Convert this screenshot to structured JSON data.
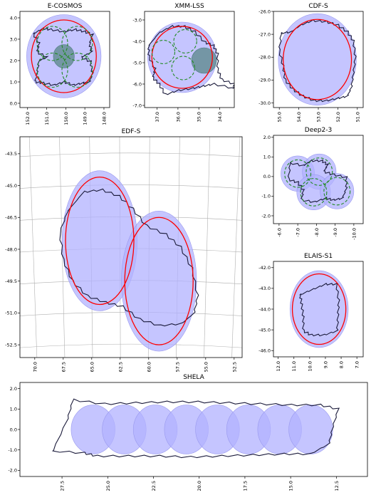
{
  "chart_data": [
    {
      "type": "scatter",
      "title": "E-COSMOS",
      "x_ticks": [
        "152.0",
        "151.0",
        "150.0",
        "149.0",
        "148.0"
      ],
      "y_ticks": [
        "4.0",
        "3.0",
        "2.0",
        "1.0",
        "0.0"
      ],
      "xlim": [
        152.4,
        147.7
      ],
      "ylim": [
        -0.2,
        4.3
      ],
      "grid": false,
      "inverted_x": true,
      "circles": [
        {
          "cx": 150.1,
          "cy": 2.2,
          "r": 1.95,
          "style": "fill"
        },
        {
          "cx": 150.1,
          "cy": 2.2,
          "r": 1.7,
          "style": "red"
        },
        {
          "cx": 150.1,
          "cy": 2.2,
          "r": 0.55,
          "style": "dark"
        },
        {
          "cx": 150.7,
          "cy": 2.8,
          "r": 0.8,
          "style": "green"
        },
        {
          "cx": 149.4,
          "cy": 2.8,
          "r": 0.8,
          "style": "green"
        },
        {
          "cx": 150.7,
          "cy": 1.55,
          "r": 0.8,
          "style": "green"
        },
        {
          "cx": 149.4,
          "cy": 1.55,
          "r": 0.8,
          "style": "green"
        }
      ],
      "outline": [
        [
          151.7,
          3.25
        ],
        [
          151.2,
          3.5
        ],
        [
          150.8,
          3.45
        ],
        [
          150.1,
          3.35
        ],
        [
          149.5,
          3.45
        ],
        [
          149.0,
          3.35
        ],
        [
          148.6,
          3.2
        ],
        [
          148.75,
          2.8
        ],
        [
          148.65,
          2.4
        ],
        [
          149.2,
          2.15
        ],
        [
          148.7,
          1.95
        ],
        [
          148.6,
          1.4
        ],
        [
          148.75,
          1.0
        ],
        [
          149.1,
          0.95
        ],
        [
          149.6,
          0.85
        ],
        [
          150.1,
          1.0
        ],
        [
          150.6,
          0.85
        ],
        [
          151.2,
          0.95
        ],
        [
          151.6,
          1.0
        ],
        [
          151.5,
          1.45
        ],
        [
          151.4,
          2.0
        ],
        [
          151.0,
          2.15
        ],
        [
          151.5,
          2.4
        ],
        [
          151.4,
          2.8
        ]
      ]
    },
    {
      "type": "scatter",
      "title": "XMM-LSS",
      "x_ticks": [
        "37.0",
        "36.0",
        "35.0",
        "34.0"
      ],
      "y_ticks": [
        "-3.0",
        "-4.0",
        "-5.0",
        "-6.0",
        "-7.0"
      ],
      "xlim": [
        37.6,
        33.3
      ],
      "ylim": [
        -7.1,
        -2.6
      ],
      "grid": false,
      "inverted_x": true,
      "circles": [
        {
          "cx": 35.8,
          "cy": -4.75,
          "r": 1.65,
          "style": "fill"
        },
        {
          "cx": 35.8,
          "cy": -4.75,
          "r": 1.45,
          "style": "red"
        },
        {
          "cx": 34.75,
          "cy": -4.9,
          "r": 0.6,
          "style": "dark"
        },
        {
          "cx": 36.7,
          "cy": -4.5,
          "r": 0.55,
          "style": "green"
        },
        {
          "cx": 35.65,
          "cy": -4.0,
          "r": 0.55,
          "style": "green"
        },
        {
          "cx": 35.75,
          "cy": -5.25,
          "r": 0.55,
          "style": "green"
        }
      ],
      "outline": [
        [
          37.4,
          -4.2
        ],
        [
          36.9,
          -3.6
        ],
        [
          36.3,
          -3.3
        ],
        [
          35.7,
          -3.3
        ],
        [
          35.2,
          -3.55
        ],
        [
          34.7,
          -4.05
        ],
        [
          34.3,
          -4.2
        ],
        [
          34.1,
          -4.6
        ],
        [
          34.1,
          -5.3
        ],
        [
          33.9,
          -5.8
        ],
        [
          33.3,
          -6.0
        ],
        [
          33.3,
          -6.2
        ],
        [
          34.3,
          -6.0
        ],
        [
          34.8,
          -6.1
        ],
        [
          35.3,
          -6.2
        ],
        [
          36.0,
          -6.3
        ],
        [
          36.6,
          -6.5
        ],
        [
          36.9,
          -6.0
        ],
        [
          37.2,
          -5.7
        ],
        [
          37.1,
          -5.3
        ],
        [
          37.4,
          -4.7
        ]
      ]
    },
    {
      "type": "scatter",
      "title": "CDF-S",
      "x_ticks": [
        "55.0",
        "54.0",
        "53.0",
        "52.0",
        "51.0"
      ],
      "y_ticks": [
        "-26.0",
        "-27.0",
        "-28.0",
        "-29.0",
        "-30.0"
      ],
      "xlim": [
        55.3,
        50.7
      ],
      "ylim": [
        -30.2,
        -26.0
      ],
      "grid": false,
      "inverted_x": true,
      "circles": [
        {
          "cx": 53.05,
          "cy": -28.1,
          "r": 2.0,
          "style": "fill"
        },
        {
          "cx": 53.05,
          "cy": -28.1,
          "r": 1.75,
          "style": "red"
        }
      ],
      "outline": [
        [
          54.9,
          -26.95
        ],
        [
          54.4,
          -26.9
        ],
        [
          53.9,
          -26.6
        ],
        [
          53.3,
          -26.4
        ],
        [
          52.6,
          -26.45
        ],
        [
          52.0,
          -26.6
        ],
        [
          51.5,
          -26.9
        ],
        [
          51.2,
          -27.3
        ],
        [
          51.1,
          -28.0
        ],
        [
          51.2,
          -28.7
        ],
        [
          51.3,
          -29.3
        ],
        [
          51.5,
          -29.7
        ],
        [
          52.0,
          -29.8
        ],
        [
          52.6,
          -29.9
        ],
        [
          53.2,
          -29.9
        ],
        [
          53.8,
          -29.7
        ],
        [
          54.3,
          -29.4
        ],
        [
          54.7,
          -29.0
        ],
        [
          54.8,
          -28.4
        ],
        [
          55.0,
          -27.7
        ]
      ]
    },
    {
      "type": "scatter",
      "title": "EDF-S",
      "x_ticks": [
        "70.0",
        "67.5",
        "65.0",
        "62.5",
        "60.0",
        "57.5",
        "55.0",
        "52.5"
      ],
      "y_ticks": [
        "-43.5",
        "-45.0",
        "-46.5",
        "-48.0",
        "-49.5",
        "-51.0",
        "-52.5"
      ],
      "xlim": [
        71.3,
        51.8
      ],
      "ylim": [
        -53.1,
        -42.7
      ],
      "grid": true,
      "inverted_x": true,
      "circles": [
        {
          "cx": 64.3,
          "cy": -47.6,
          "r": 3.3,
          "style": "fill"
        },
        {
          "cx": 64.3,
          "cy": -47.6,
          "r": 3.0,
          "style": "red"
        },
        {
          "cx": 59.1,
          "cy": -49.5,
          "r": 3.3,
          "style": "fill"
        },
        {
          "cx": 59.1,
          "cy": -49.5,
          "r": 3.0,
          "style": "red"
        }
      ],
      "outline": [
        [
          67.1,
          -46.2
        ],
        [
          65.7,
          -45.3
        ],
        [
          64.1,
          -45.2
        ],
        [
          62.6,
          -45.5
        ],
        [
          61.4,
          -46.1
        ],
        [
          60.2,
          -46.9
        ],
        [
          58.5,
          -47.3
        ],
        [
          57.2,
          -47.9
        ],
        [
          56.2,
          -48.9
        ],
        [
          55.7,
          -50.2
        ],
        [
          56.0,
          -51.0
        ],
        [
          57.1,
          -51.5
        ],
        [
          59.0,
          -51.6
        ],
        [
          60.8,
          -51.3
        ],
        [
          62.3,
          -50.7
        ],
        [
          63.8,
          -50.5
        ],
        [
          65.4,
          -50.2
        ],
        [
          66.7,
          -49.5
        ],
        [
          67.5,
          -48.5
        ],
        [
          67.8,
          -47.2
        ]
      ]
    },
    {
      "type": "scatter",
      "title": "Deep2-3",
      "x_ticks": [
        "-6.0",
        "-7.0",
        "-8.0",
        "-9.0",
        "-10.0"
      ],
      "y_ticks": [
        "2.0",
        "1.0",
        "0.0",
        "-1.0",
        "-2.0"
      ],
      "xlim": [
        -5.7,
        -10.5
      ],
      "ylim": [
        -2.4,
        2.1
      ],
      "grid": false,
      "inverted_x": true,
      "circles": [
        {
          "cx": -7.0,
          "cy": 0.15,
          "r": 0.9,
          "style": "fill"
        },
        {
          "cx": -7.0,
          "cy": 0.15,
          "r": 0.7,
          "style": "green"
        },
        {
          "cx": -8.15,
          "cy": 0.25,
          "r": 0.9,
          "style": "fill"
        },
        {
          "cx": -8.15,
          "cy": 0.25,
          "r": 0.7,
          "style": "green"
        },
        {
          "cx": -7.85,
          "cy": -0.8,
          "r": 0.9,
          "style": "fill"
        },
        {
          "cx": -7.85,
          "cy": -0.8,
          "r": 0.7,
          "style": "green"
        },
        {
          "cx": -9.1,
          "cy": -0.75,
          "r": 0.9,
          "style": "fill"
        },
        {
          "cx": -9.1,
          "cy": -0.75,
          "r": 0.7,
          "style": "green"
        }
      ],
      "outline": [
        [
          -6.6,
          0.7
        ],
        [
          -7.3,
          0.55
        ],
        [
          -7.7,
          0.8
        ],
        [
          -8.3,
          0.8
        ],
        [
          -8.6,
          0.6
        ],
        [
          -8.4,
          0.25
        ],
        [
          -8.9,
          0.1
        ],
        [
          -9.6,
          -0.05
        ],
        [
          -9.6,
          -0.6
        ],
        [
          -9.4,
          -1.1
        ],
        [
          -8.9,
          -1.2
        ],
        [
          -8.5,
          -1.1
        ],
        [
          -7.9,
          -1.3
        ],
        [
          -7.2,
          -1.2
        ],
        [
          -7.3,
          -0.7
        ],
        [
          -7.0,
          -0.3
        ],
        [
          -6.5,
          -0.15
        ]
      ]
    },
    {
      "type": "scatter",
      "title": "ELAIS-S1",
      "x_ticks": [
        "12.0",
        "11.0",
        "10.0",
        "9.0",
        "8.0",
        "7.0"
      ],
      "y_ticks": [
        "-42.0",
        "-43.0",
        "-44.0",
        "-45.0",
        "-46.0"
      ],
      "xlim": [
        12.3,
        6.6
      ],
      "ylim": [
        -46.3,
        -41.7
      ],
      "grid": false,
      "inverted_x": true,
      "circles": [
        {
          "cx": 9.4,
          "cy": -44.0,
          "r": 1.85,
          "style": "fill"
        },
        {
          "cx": 9.4,
          "cy": -44.0,
          "r": 1.7,
          "style": "red"
        }
      ],
      "outline": [
        [
          10.6,
          -43.3
        ],
        [
          9.8,
          -43.05
        ],
        [
          9.0,
          -42.8
        ],
        [
          8.3,
          -42.8
        ],
        [
          8.15,
          -43.6
        ],
        [
          8.2,
          -44.3
        ],
        [
          8.25,
          -45.05
        ],
        [
          9.1,
          -45.25
        ],
        [
          9.9,
          -45.25
        ],
        [
          10.4,
          -45.05
        ],
        [
          10.4,
          -44.4
        ],
        [
          10.5,
          -43.8
        ]
      ]
    },
    {
      "type": "scatter",
      "title": "SHELA",
      "x_ticks": [
        "27.5",
        "25.0",
        "22.5",
        "20.0",
        "17.5",
        "15.0",
        "12.5"
      ],
      "y_ticks": [
        "2.0",
        "1.0",
        "0.0",
        "-1.0",
        "-2.0"
      ],
      "xlim": [
        29.8,
        10.8
      ],
      "ylim": [
        -2.3,
        2.3
      ],
      "grid": false,
      "inverted_x": true,
      "circles": [
        {
          "cx": 25.8,
          "cy": 0.0,
          "r": 1.2,
          "style": "fill"
        },
        {
          "cx": 24.1,
          "cy": 0.0,
          "r": 1.2,
          "style": "fill"
        },
        {
          "cx": 22.4,
          "cy": 0.0,
          "r": 1.2,
          "style": "fill"
        },
        {
          "cx": 20.7,
          "cy": 0.0,
          "r": 1.2,
          "style": "fill"
        },
        {
          "cx": 19.0,
          "cy": 0.0,
          "r": 1.2,
          "style": "fill"
        },
        {
          "cx": 17.3,
          "cy": 0.0,
          "r": 1.2,
          "style": "fill"
        },
        {
          "cx": 15.6,
          "cy": 0.0,
          "r": 1.2,
          "style": "fill"
        },
        {
          "cx": 13.9,
          "cy": 0.0,
          "r": 1.2,
          "style": "fill"
        }
      ],
      "outline": [
        [
          28.0,
          -1.05
        ],
        [
          26.3,
          -1.15
        ],
        [
          25.6,
          -1.3
        ],
        [
          23.9,
          -1.3
        ],
        [
          22.2,
          -1.3
        ],
        [
          20.5,
          -1.35
        ],
        [
          18.8,
          -1.3
        ],
        [
          17.1,
          -1.25
        ],
        [
          15.4,
          -1.2
        ],
        [
          13.9,
          -1.2
        ],
        [
          12.9,
          -0.7
        ],
        [
          12.7,
          0.1
        ],
        [
          12.4,
          1.0
        ],
        [
          13.4,
          1.2
        ],
        [
          15.0,
          1.2
        ],
        [
          16.7,
          1.25
        ],
        [
          18.4,
          1.3
        ],
        [
          20.1,
          1.35
        ],
        [
          21.8,
          1.35
        ],
        [
          23.5,
          1.3
        ],
        [
          25.2,
          1.25
        ],
        [
          26.9,
          1.45
        ],
        [
          27.2,
          0.5
        ]
      ]
    }
  ]
}
